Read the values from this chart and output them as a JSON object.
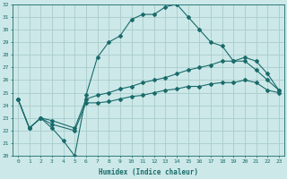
{
  "xlabel": "Humidex (Indice chaleur)",
  "xlim": [
    -0.5,
    23.5
  ],
  "ylim": [
    20,
    32
  ],
  "xticks": [
    0,
    1,
    2,
    3,
    4,
    5,
    6,
    7,
    8,
    9,
    10,
    11,
    12,
    13,
    14,
    15,
    16,
    17,
    18,
    19,
    20,
    21,
    22,
    23
  ],
  "yticks": [
    20,
    21,
    22,
    23,
    24,
    25,
    26,
    27,
    28,
    29,
    30,
    31,
    32
  ],
  "bg_color": "#cce8e8",
  "grid_color": "#aacccc",
  "line_color": "#1a6b6b",
  "lines": [
    {
      "x": [
        0,
        1,
        2,
        3,
        4,
        5,
        6,
        7,
        8,
        9,
        10,
        11,
        12,
        13,
        14,
        15,
        16,
        17,
        18,
        19,
        20,
        21,
        22,
        23
      ],
      "y": [
        24.5,
        22.2,
        23.0,
        22.2,
        21.2,
        20.0,
        24.8,
        27.8,
        29.0,
        29.5,
        30.8,
        31.2,
        31.2,
        31.8,
        32.0,
        31.0,
        30.0,
        29.0,
        28.7,
        27.5,
        27.5,
        26.8,
        26.0,
        25.2
      ]
    },
    {
      "x": [
        0,
        1,
        2,
        3,
        5,
        6,
        7,
        8,
        9,
        10,
        11,
        12,
        13,
        14,
        15,
        16,
        17,
        18,
        19,
        20,
        21,
        22,
        23
      ],
      "y": [
        24.5,
        22.2,
        23.0,
        22.8,
        22.2,
        24.5,
        24.8,
        25.0,
        25.3,
        25.5,
        25.8,
        26.0,
        26.2,
        26.5,
        26.8,
        27.0,
        27.2,
        27.5,
        27.5,
        27.8,
        27.5,
        26.5,
        25.2
      ]
    },
    {
      "x": [
        0,
        1,
        2,
        3,
        5,
        6,
        7,
        8,
        9,
        10,
        11,
        12,
        13,
        14,
        15,
        16,
        17,
        18,
        19,
        20,
        21,
        22,
        23
      ],
      "y": [
        24.5,
        22.2,
        23.0,
        22.5,
        22.0,
        24.2,
        24.2,
        24.3,
        24.5,
        24.7,
        24.8,
        25.0,
        25.2,
        25.3,
        25.5,
        25.5,
        25.7,
        25.8,
        25.8,
        26.0,
        25.8,
        25.2,
        25.0
      ]
    }
  ]
}
